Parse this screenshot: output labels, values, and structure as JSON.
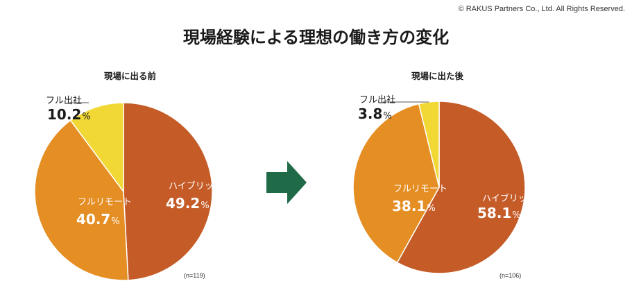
{
  "copyright": "© RAKUS Partners Co., Ltd. All Rights Reserved.",
  "title": "現場経験による理想の働き方の変化",
  "colors": {
    "hybrid": "#C55C28",
    "full_remote": "#E58E23",
    "full_office": "#F1D834",
    "arrow": "#1F6B47"
  },
  "chart_data": [
    {
      "type": "pie",
      "title": "現場に出る前",
      "sample_size": "(n=119)",
      "slices": [
        {
          "label": "ハイブリット",
          "value": 49.2,
          "display": "49.2",
          "unit": "%"
        },
        {
          "label": "フルリモート",
          "value": 40.7,
          "display": "40.7",
          "unit": "%"
        },
        {
          "label": "フル出社",
          "value": 10.2,
          "display": "10.2",
          "unit": "%"
        }
      ]
    },
    {
      "type": "pie",
      "title": "現場に出た後",
      "sample_size": "(n=106)",
      "slices": [
        {
          "label": "ハイブリット",
          "value": 58.1,
          "display": "58.1",
          "unit": "%"
        },
        {
          "label": "フルリモート",
          "value": 38.1,
          "display": "38.1",
          "unit": "%"
        },
        {
          "label": "フル出社",
          "value": 3.8,
          "display": "3.8",
          "unit": "%"
        }
      ]
    }
  ]
}
